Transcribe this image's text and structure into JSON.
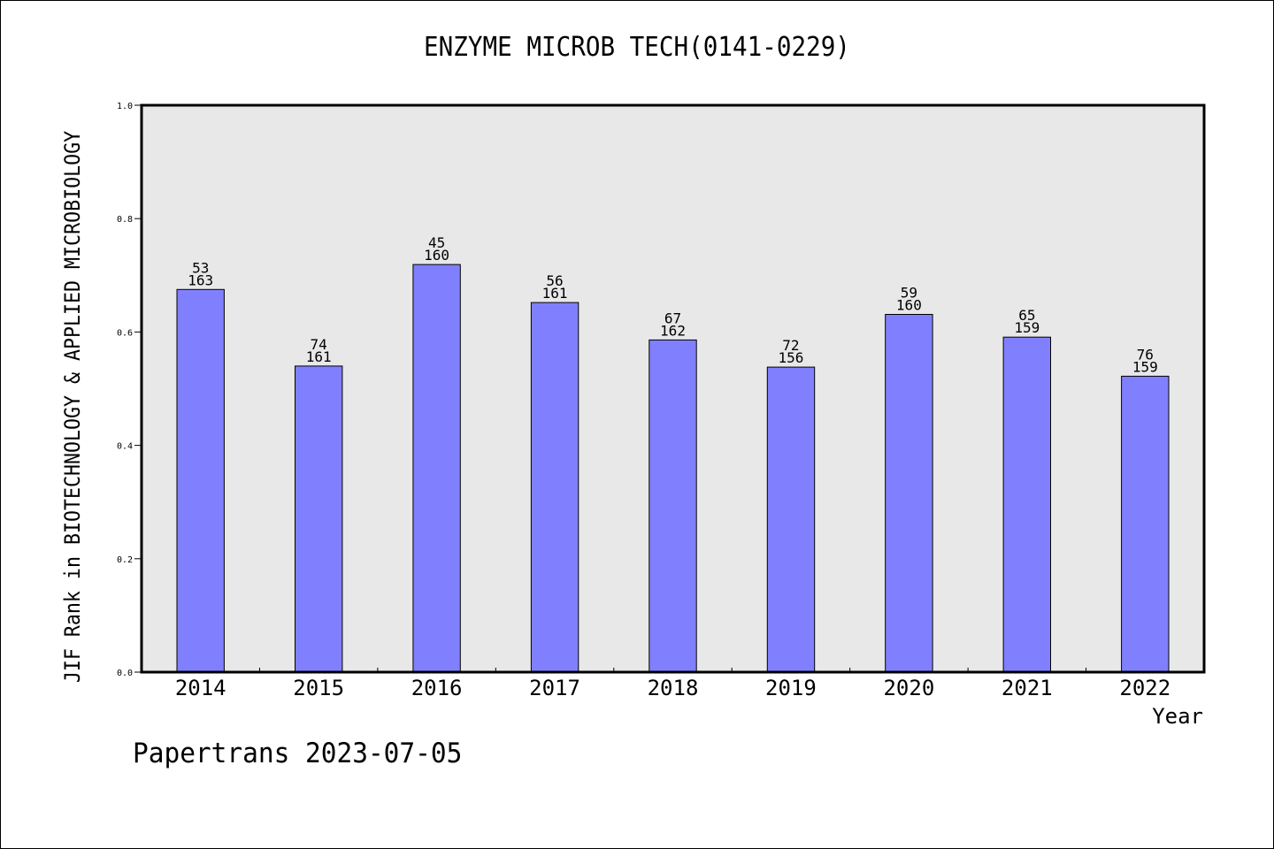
{
  "chart_data": {
    "type": "bar",
    "title": "ENZYME MICROB TECH(0141-0229)",
    "xlabel": "Year",
    "ylabel": "JIF Rank in BIOTECHNOLOGY & APPLIED MICROBIOLOGY",
    "categories": [
      "2014",
      "2015",
      "2016",
      "2017",
      "2018",
      "2019",
      "2020",
      "2021",
      "2022"
    ],
    "values": [
      0.675,
      0.54,
      0.719,
      0.652,
      0.586,
      0.538,
      0.631,
      0.591,
      0.522
    ],
    "rank": [
      "53",
      "74",
      "45",
      "56",
      "67",
      "72",
      "59",
      "65",
      "76"
    ],
    "total": [
      "163",
      "161",
      "160",
      "161",
      "162",
      "156",
      "160",
      "159",
      "159"
    ],
    "ylim": [
      0.0,
      1.0
    ],
    "yticks": [
      "0.0",
      "0.2",
      "0.4",
      "0.6",
      "0.8",
      "1.0"
    ],
    "grid": false,
    "legend": "none",
    "colors": {
      "bar": "#8080ff",
      "plot_background": "#e8e8e8",
      "text": "#000000"
    }
  },
  "footer": "Papertrans 2023-07-05"
}
